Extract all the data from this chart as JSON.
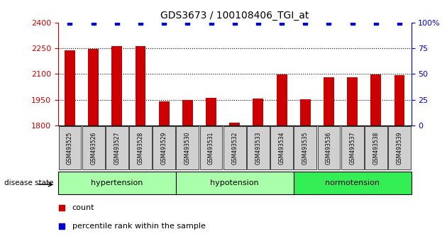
{
  "title": "GDS3673 / 100108406_TGI_at",
  "samples": [
    "GSM493525",
    "GSM493526",
    "GSM493527",
    "GSM493528",
    "GSM493529",
    "GSM493530",
    "GSM493531",
    "GSM493532",
    "GSM493533",
    "GSM493534",
    "GSM493535",
    "GSM493536",
    "GSM493537",
    "GSM493538",
    "GSM493539"
  ],
  "counts": [
    2238,
    2248,
    2265,
    2265,
    1940,
    1947,
    1960,
    1818,
    1957,
    2097,
    1955,
    2083,
    2083,
    2097,
    2095
  ],
  "percentiles": [
    100,
    100,
    100,
    100,
    100,
    100,
    100,
    100,
    100,
    100,
    100,
    100,
    100,
    100,
    100
  ],
  "ylim_left": [
    1800,
    2400
  ],
  "ylim_right": [
    0,
    100
  ],
  "yticks_left": [
    1800,
    1950,
    2100,
    2250,
    2400
  ],
  "yticks_right": [
    0,
    25,
    50,
    75,
    100
  ],
  "groups": [
    {
      "label": "hypertension",
      "start": 0,
      "end": 4,
      "color": "#aaffaa"
    },
    {
      "label": "hypotension",
      "start": 5,
      "end": 9,
      "color": "#aaffaa"
    },
    {
      "label": "normotension",
      "start": 10,
      "end": 14,
      "color": "#33ee55"
    }
  ],
  "bar_color": "#cc0000",
  "percentile_color": "#0000cc",
  "bar_width": 0.45,
  "grid_color": "black",
  "tick_label_color": "#cc0000",
  "right_tick_color": "#0000cc",
  "disease_state_label": "disease state",
  "legend_count_label": "count",
  "legend_percentile_label": "percentile rank within the sample"
}
